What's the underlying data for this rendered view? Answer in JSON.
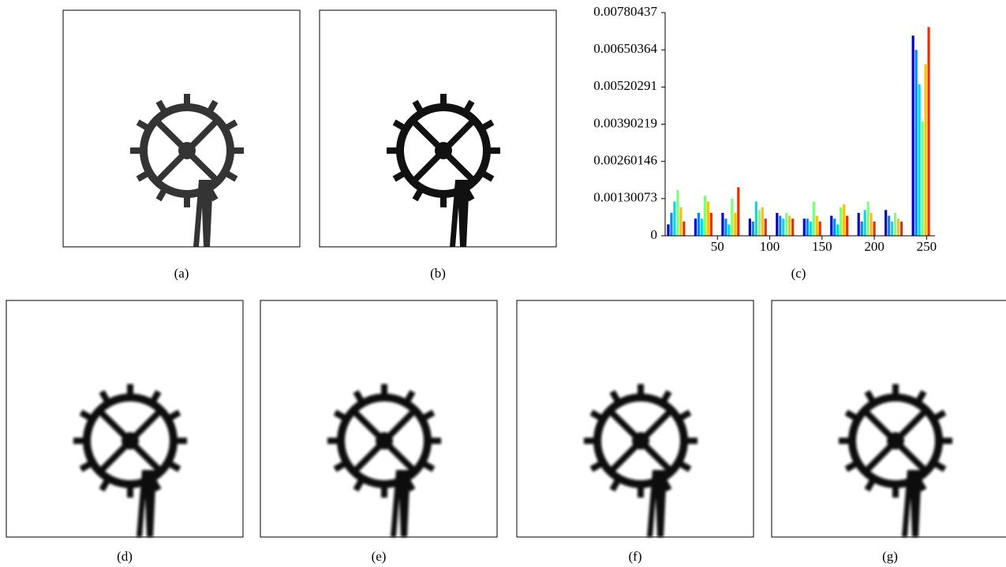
{
  "captions": [
    "(a)",
    "(b)",
    "(c)",
    "(d)",
    "(e)",
    "(f)",
    "(g)"
  ],
  "chart_data": {
    "type": "bar",
    "x": [
      3,
      6,
      9,
      12,
      15,
      18,
      29,
      32,
      35,
      38,
      41,
      44,
      55,
      58,
      61,
      64,
      67,
      70,
      81,
      84,
      87,
      90,
      93,
      96,
      107,
      110,
      113,
      116,
      119,
      122,
      133,
      136,
      139,
      142,
      145,
      148,
      159,
      162,
      165,
      168,
      171,
      174,
      185,
      188,
      191,
      194,
      197,
      200,
      211,
      214,
      217,
      220,
      223,
      226,
      237,
      240,
      243,
      246,
      249,
      252
    ],
    "values": [
      0.0004,
      0.0008,
      0.0012,
      0.0016,
      0.001,
      0.0005,
      0.0006,
      0.0008,
      0.0006,
      0.0014,
      0.0012,
      0.0008,
      0.0008,
      0.0006,
      0.0004,
      0.0013,
      0.0008,
      0.0017,
      0.0006,
      0.0005,
      0.0012,
      0.0009,
      0.001,
      0.0006,
      0.0008,
      0.0007,
      0.0006,
      0.0008,
      0.0007,
      0.0006,
      0.0006,
      0.0006,
      0.0005,
      0.0012,
      0.0007,
      0.0005,
      0.0007,
      0.0006,
      0.0004,
      0.001,
      0.0011,
      0.0007,
      0.0008,
      0.0005,
      0.0009,
      0.0012,
      0.0008,
      0.0005,
      0.0009,
      0.0007,
      0.0005,
      0.0008,
      0.0006,
      0.0005,
      0.007,
      0.0065,
      0.0053,
      0.004,
      0.006,
      0.0073
    ],
    "palette": [
      "#0000c8",
      "#0088ff",
      "#00dde0",
      "#7dff7a",
      "#ffc000",
      "#e83000"
    ],
    "xlim": [
      0,
      258
    ],
    "ylim": [
      0,
      0.00780437
    ],
    "xticks": [
      50,
      100,
      150,
      200,
      250
    ],
    "yticks": [
      0,
      0.00130073,
      0.00260146,
      0.00390219,
      0.00520291,
      0.00650364,
      0.00780437
    ]
  }
}
